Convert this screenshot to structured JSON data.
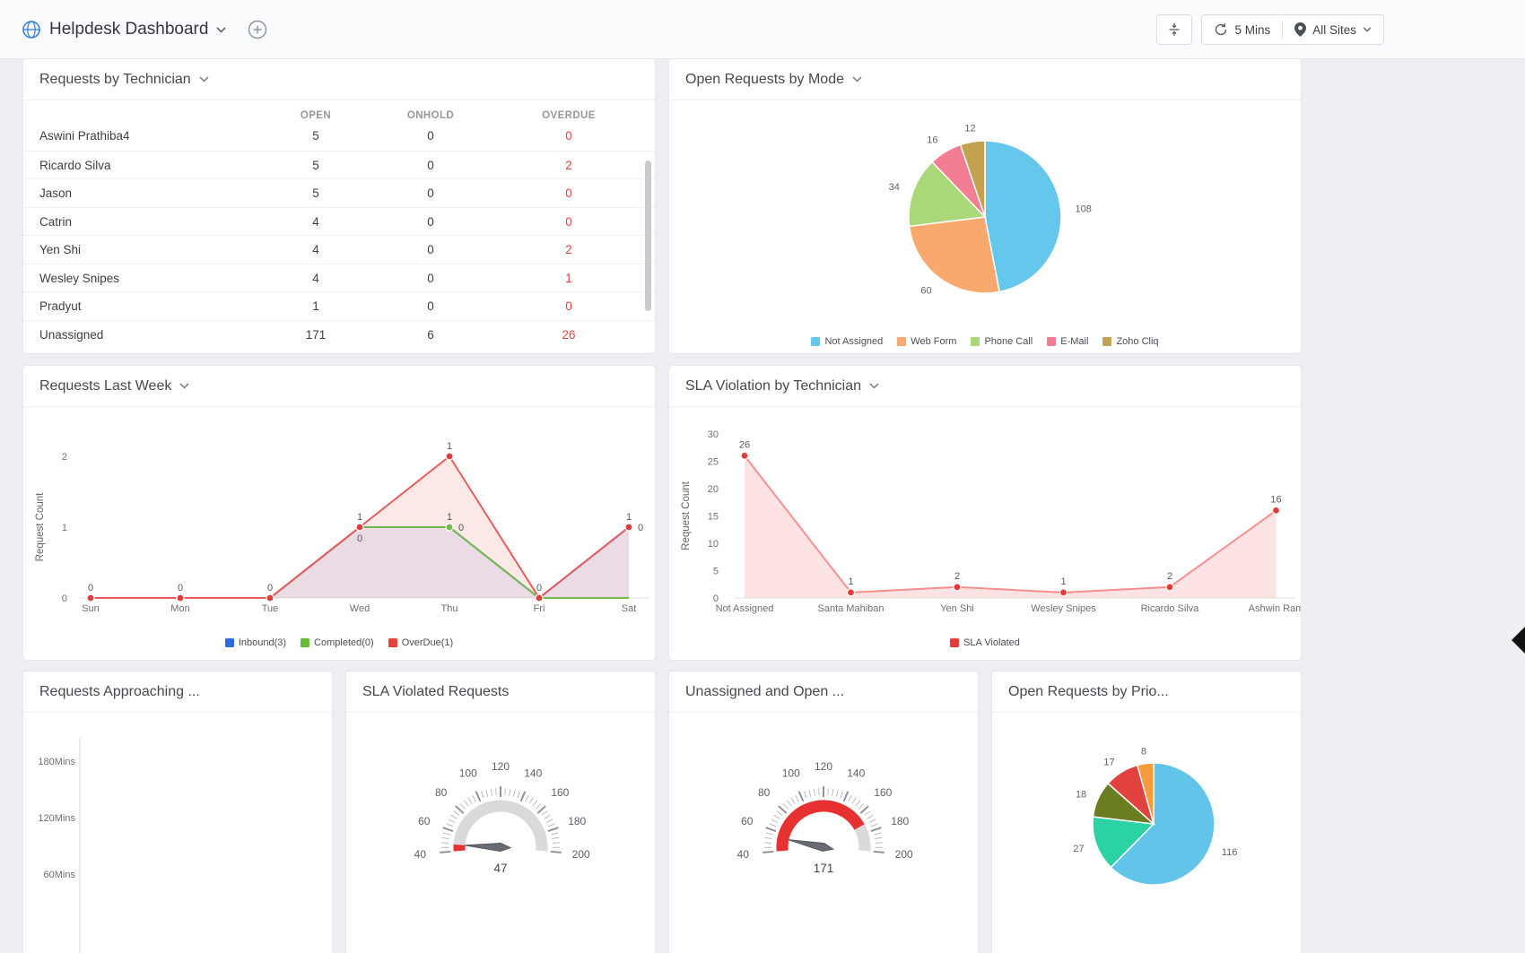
{
  "topbar": {
    "title": "Helpdesk Dashboard",
    "refresh_interval": "5 Mins",
    "site_filter": "All Sites"
  },
  "panels": {
    "requests_by_technician": {
      "title": "Requests by Technician",
      "columns": [
        "OPEN",
        "ONHOLD",
        "OVERDUE"
      ],
      "rows": [
        {
          "name": "Aswini Prathiba4",
          "open": 5,
          "onhold": 0,
          "overdue": 0
        },
        {
          "name": "Ricardo Silva",
          "open": 5,
          "onhold": 0,
          "overdue": 2
        },
        {
          "name": "Jason",
          "open": 5,
          "onhold": 0,
          "overdue": 0
        },
        {
          "name": "Catrin",
          "open": 4,
          "onhold": 0,
          "overdue": 0
        },
        {
          "name": "Yen Shi",
          "open": 4,
          "onhold": 0,
          "overdue": 2
        },
        {
          "name": "Wesley Snipes",
          "open": 4,
          "onhold": 0,
          "overdue": 1
        },
        {
          "name": "Pradyut",
          "open": 1,
          "onhold": 0,
          "overdue": 0
        },
        {
          "name": "Unassigned",
          "open": 171,
          "onhold": 6,
          "overdue": 26
        }
      ]
    },
    "open_requests_by_mode": {
      "title": "Open Requests by Mode"
    },
    "requests_last_week": {
      "title": "Requests Last Week"
    },
    "sla_violation_by_technician": {
      "title": "SLA Violation by Technician"
    },
    "requests_approaching": {
      "title": "Requests Approaching ..."
    },
    "sla_violated_requests": {
      "title": "SLA Violated Requests"
    },
    "unassigned_and_open": {
      "title": "Unassigned and Open ..."
    },
    "open_requests_by_priority": {
      "title": "Open Requests by Prio..."
    }
  },
  "chart_data": [
    {
      "id": "open-requests-by-mode",
      "type": "pie",
      "title": "Open Requests by Mode",
      "legend_position": "bottom",
      "slices": [
        {
          "name": "Not Assigned",
          "value": 108,
          "color": "#66c7ec"
        },
        {
          "name": "Web Form",
          "value": 60,
          "color": "#f9a96d"
        },
        {
          "name": "Phone Call",
          "value": 34,
          "color": "#aad878"
        },
        {
          "name": "E-Mail",
          "value": 16,
          "color": "#f37d92"
        },
        {
          "name": "Zoho Cliq",
          "value": 12,
          "color": "#c2a24f"
        }
      ]
    },
    {
      "id": "requests-last-week",
      "type": "line",
      "title": "Requests Last Week",
      "xlabel": "",
      "ylabel": "Request Count",
      "ylim": [
        0,
        2
      ],
      "yticks": [
        0,
        1,
        2
      ],
      "categories": [
        "Sun",
        "Mon",
        "Tue",
        "Wed",
        "Thu",
        "Fri",
        "Sat"
      ],
      "series": [
        {
          "name": "Inbound(3)",
          "color": "#2f6ce3",
          "legend_color": "#2f6ce3",
          "fill": "rgba(47,108,227,0.10)",
          "values": [
            0,
            0,
            0,
            1,
            1,
            0,
            1
          ]
        },
        {
          "name": "Completed(0)",
          "color": "#74b94e",
          "legend_color": "#66bb3a",
          "fill": "none",
          "values": [
            0,
            0,
            0,
            1,
            1,
            0,
            0
          ],
          "markers": [
            4
          ],
          "marker_color": "#6cbf3f"
        },
        {
          "name": "OverDue(1)",
          "color": "#e85c5c",
          "legend_color": "#e8403a",
          "fill": "rgba(244,112,112,0.16)",
          "values": [
            0,
            0,
            0,
            1,
            2,
            0,
            1
          ],
          "markers": "all",
          "marker_color": "#e23b3b"
        }
      ],
      "point_labels": [
        {
          "i": 0,
          "v": 0,
          "t": "0",
          "pos": "above"
        },
        {
          "i": 1,
          "v": 0,
          "t": "0",
          "pos": "above"
        },
        {
          "i": 2,
          "v": 0,
          "t": "0",
          "pos": "above"
        },
        {
          "i": 3,
          "v": 1,
          "t": "1",
          "pos": "above"
        },
        {
          "i": 3,
          "v": 1,
          "t": "0",
          "pos": "below"
        },
        {
          "i": 4,
          "v": 2,
          "t": "1",
          "pos": "above"
        },
        {
          "i": 4,
          "v": 1,
          "t": "1",
          "pos": "above"
        },
        {
          "i": 4,
          "v": 1,
          "t": "0",
          "pos": "right"
        },
        {
          "i": 5,
          "v": 0,
          "t": "0",
          "pos": "above"
        },
        {
          "i": 6,
          "v": 1,
          "t": "1",
          "pos": "above"
        },
        {
          "i": 6,
          "v": 1,
          "t": "0",
          "pos": "right"
        }
      ]
    },
    {
      "id": "sla-violation-by-technician",
      "type": "line",
      "title": "SLA Violation by Technician",
      "ylabel": "Request Count",
      "ylim": [
        0,
        30
      ],
      "yticks": [
        0,
        5,
        10,
        15,
        20,
        25,
        30
      ],
      "categories": [
        "Not Assigned",
        "Santa Mahiban",
        "Yen Shi",
        "Wesley Snipes",
        "Ricardo Silva",
        "Ashwin Ram"
      ],
      "label_points": true,
      "series": [
        {
          "name": "SLA Violated",
          "color": "#f88f8f",
          "legend_color": "#e53b3b",
          "fill": "rgba(248,143,143,0.25)",
          "values": [
            26,
            1,
            2,
            1,
            2,
            16
          ],
          "markers": "all",
          "marker_color": "#e43b3b"
        }
      ]
    },
    {
      "id": "requests-approaching",
      "type": "bar",
      "title": "Requests Approaching ...",
      "categories": [],
      "values": [],
      "yticks": [
        "180Mins",
        "120Mins",
        "60Mins"
      ]
    },
    {
      "id": "sla-violated-requests",
      "type": "gauge",
      "title": "SLA Violated Requests",
      "min": 40,
      "max": 200,
      "step": 20,
      "ticks": [
        40,
        60,
        80,
        100,
        120,
        140,
        160,
        180,
        200
      ],
      "value": 47,
      "needle_deg": 177,
      "value_color": "#e73131"
    },
    {
      "id": "unassigned-and-open",
      "type": "gauge",
      "title": "Unassigned and Open ...",
      "min": 40,
      "max": 200,
      "step": 20,
      "ticks": [
        40,
        60,
        80,
        100,
        120,
        140,
        160,
        180,
        200
      ],
      "value": 171,
      "needle_deg": 168,
      "value_color": "#e73131"
    },
    {
      "id": "open-requests-by-priority",
      "type": "pie",
      "title": "Open Requests by Prio...",
      "slices": [
        {
          "value": 116,
          "color": "#63c4e9"
        },
        {
          "value": 27,
          "color": "#2bd3a4"
        },
        {
          "value": 18,
          "color": "#6b7d21"
        },
        {
          "value": 17,
          "color": "#e2423e"
        },
        {
          "value": 8,
          "color": "#f49b3a"
        }
      ]
    }
  ]
}
